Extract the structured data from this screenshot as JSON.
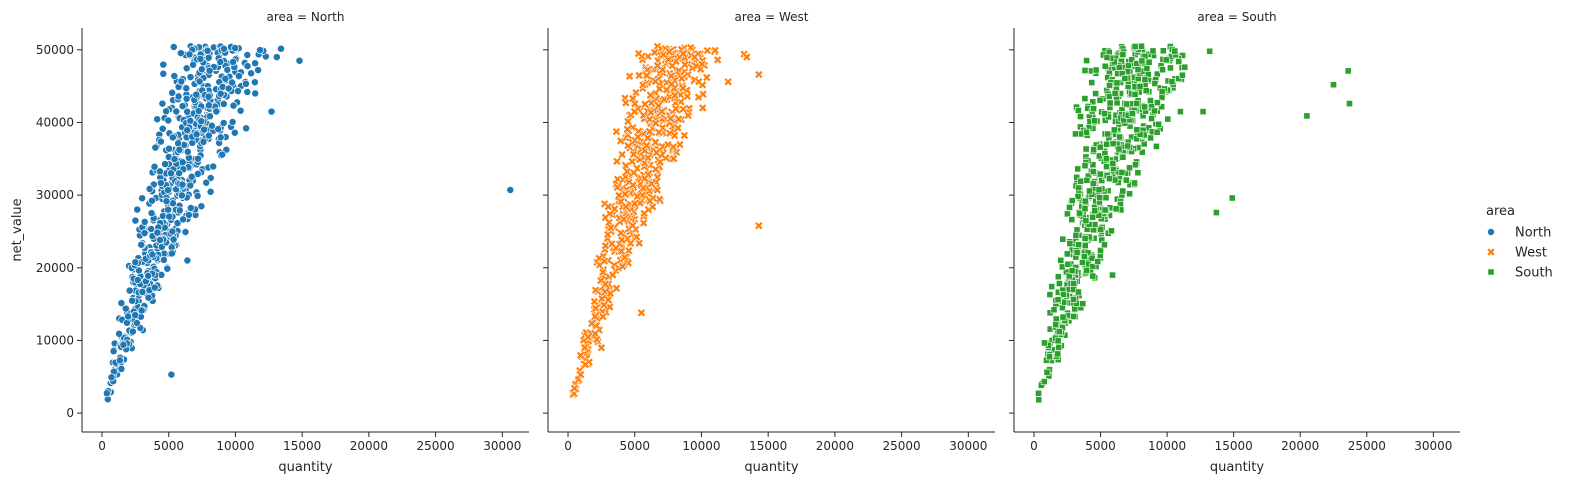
{
  "chart_data": {
    "type": "scatter",
    "facet_variable": "area",
    "x_label": "quantity",
    "y_label": "net_value",
    "xlim": [
      -1500,
      32000
    ],
    "ylim": [
      -2600,
      53000
    ],
    "x_ticks": [
      0,
      5000,
      10000,
      15000,
      20000,
      25000,
      30000
    ],
    "y_ticks": [
      0,
      10000,
      20000,
      30000,
      40000,
      50000
    ],
    "grid": false,
    "legend": {
      "title": "area",
      "placement": "right",
      "entries": [
        {
          "label": "North",
          "marker": "circle",
          "color": "#1f77b4"
        },
        {
          "label": "West",
          "marker": "x",
          "color": "#ff7f0e"
        },
        {
          "label": "South",
          "marker": "square",
          "color": "#2ca02c"
        }
      ]
    },
    "facets": [
      {
        "title": "area = North",
        "series": "North",
        "cloud": {
          "n": 650,
          "y_min": 300,
          "y_max": 50500,
          "x_ratio_min": 0.09,
          "x_ratio_max": 0.27,
          "x_cap": 13500
        },
        "points": [
          [
            30600,
            30700
          ],
          [
            14800,
            48500
          ],
          [
            12700,
            41500
          ],
          [
            5200,
            5300
          ],
          [
            6400,
            21000
          ],
          [
            2500,
            26500
          ],
          [
            13100,
            49000
          ],
          [
            11700,
            47200
          ],
          [
            10800,
            39200
          ],
          [
            1600,
            9400
          ]
        ]
      },
      {
        "title": "area = West",
        "series": "West",
        "cloud": {
          "n": 550,
          "y_min": 300,
          "y_max": 50500,
          "x_ratio_min": 0.09,
          "x_ratio_max": 0.24,
          "x_cap": 11800
        },
        "points": [
          [
            14300,
            46600
          ],
          [
            14300,
            25800
          ],
          [
            13200,
            49400
          ],
          [
            13400,
            49000
          ],
          [
            5500,
            13800
          ],
          [
            2500,
            9000
          ],
          [
            10100,
            42000
          ],
          [
            12000,
            45600
          ]
        ]
      },
      {
        "title": "area = South",
        "series": "South",
        "cloud": {
          "n": 650,
          "y_min": 200,
          "y_max": 50500,
          "x_ratio_min": 0.07,
          "x_ratio_max": 0.26,
          "x_cap": 12800
        },
        "points": [
          [
            23600,
            47100
          ],
          [
            23700,
            42600
          ],
          [
            22500,
            45200
          ],
          [
            20500,
            40900
          ],
          [
            14900,
            29600
          ],
          [
            13700,
            27600
          ],
          [
            12700,
            41500
          ],
          [
            11000,
            41500
          ],
          [
            13200,
            49800
          ],
          [
            5900,
            19000
          ]
        ]
      }
    ]
  }
}
